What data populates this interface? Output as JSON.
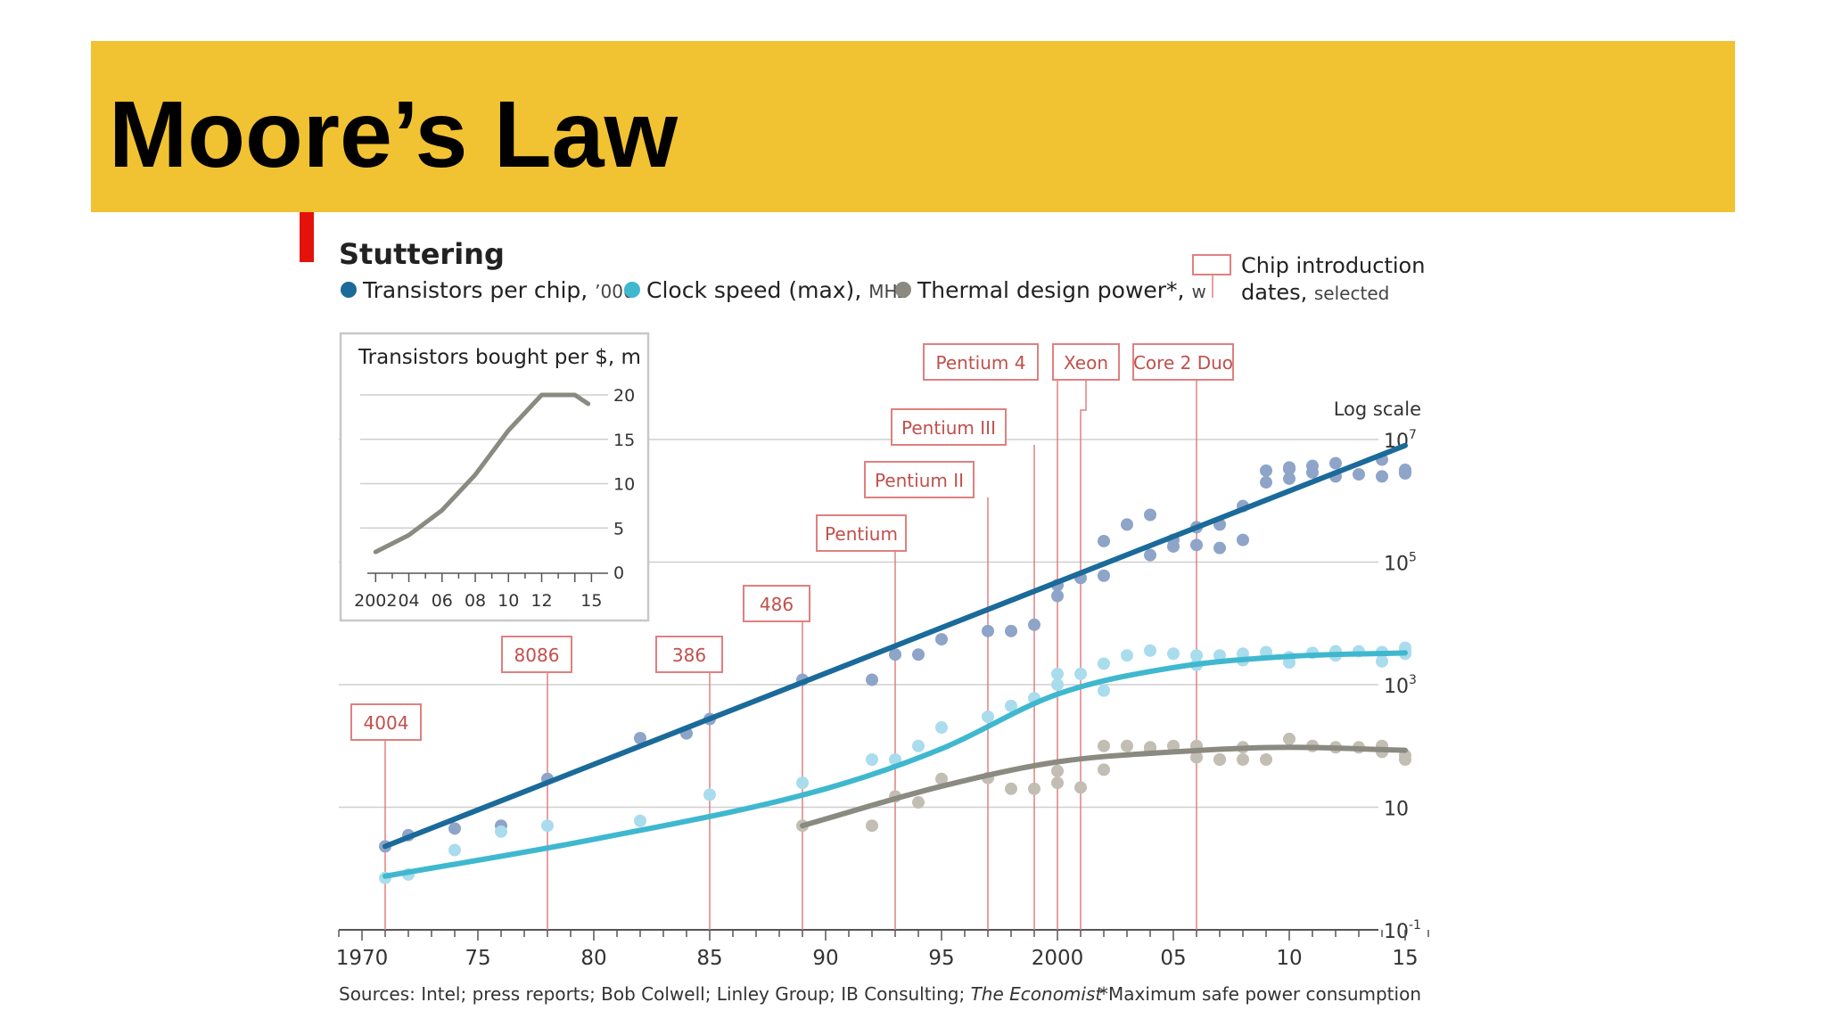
{
  "slide": {
    "title": "Moore’s Law",
    "banner_color": "#f1c232"
  },
  "figure": {
    "heading": "Stuttering",
    "legend": [
      {
        "label": "Transistors per chip,",
        "unit": "’000",
        "color": "#1a6a9a"
      },
      {
        "label": "Clock speed (max),",
        "unit": "MHz",
        "color": "#3fb8cf"
      },
      {
        "label": "Thermal design power*,",
        "unit": "w",
        "color": "#8a8a80"
      }
    ],
    "chip_legend": {
      "line1": "Chip introduction",
      "line2_bold": "dates,",
      "line2_light": "selected",
      "color": "#e08080"
    },
    "scale_note": "Log scale",
    "source_note": "Sources: Intel; press reports; Bob Colwell; Linley Group; IB Consulting;",
    "source_italic": "The Economist",
    "footnote": "*Maximum safe power consumption",
    "accent_color": "#e3120b"
  },
  "chart_data": [
    {
      "type": "scatter",
      "x_label": "",
      "xlim": [
        1969,
        2016
      ],
      "y_scale": "log10",
      "ylim": [
        0.1,
        10000000
      ],
      "y_ticks": [
        {
          "value": 0.1,
          "base": "10",
          "exp": "-1"
        },
        {
          "value": 10,
          "base": "10",
          "exp": ""
        },
        {
          "value": 1000,
          "base": "10",
          "exp": "3"
        },
        {
          "value": 100000,
          "base": "10",
          "exp": "5"
        },
        {
          "value": 10000000,
          "base": "10",
          "exp": "7"
        }
      ],
      "x_ticks": [
        {
          "value": 1970,
          "label": "1970"
        },
        {
          "value": 1975,
          "label": "75"
        },
        {
          "value": 1980,
          "label": "80"
        },
        {
          "value": 1985,
          "label": "85"
        },
        {
          "value": 1990,
          "label": "90"
        },
        {
          "value": 1995,
          "label": "95"
        },
        {
          "value": 2000,
          "label": "2000"
        },
        {
          "value": 2005,
          "label": "05"
        },
        {
          "value": 2010,
          "label": "10"
        },
        {
          "value": 2015,
          "label": "15"
        }
      ],
      "grid": true,
      "chip_markers": [
        {
          "label": "4004",
          "year": 1971
        },
        {
          "label": "8086",
          "year": 1978
        },
        {
          "label": "386",
          "year": 1985
        },
        {
          "label": "486",
          "year": 1989
        },
        {
          "label": "Pentium",
          "year": 1993
        },
        {
          "label": "Pentium II",
          "year": 1997
        },
        {
          "label": "Pentium III",
          "year": 1999
        },
        {
          "label": "Pentium 4",
          "year": 2000
        },
        {
          "label": "Xeon",
          "year": 2001
        },
        {
          "label": "Core 2 Duo",
          "year": 2006
        }
      ],
      "series": [
        {
          "name": "Transistors per chip",
          "color": "#1a6a9a",
          "dot_color": "#8ea4c8",
          "trend": [
            [
              1971,
              2.3
            ],
            [
              2015,
              8000000
            ]
          ],
          "points": [
            [
              1971,
              2.3
            ],
            [
              1972,
              3.5
            ],
            [
              1974,
              4.5
            ],
            [
              1976,
              5
            ],
            [
              1978,
              29
            ],
            [
              1982,
              134
            ],
            [
              1984,
              160
            ],
            [
              1985,
              275
            ],
            [
              1989,
              1200
            ],
            [
              1992,
              1200
            ],
            [
              1993,
              3100
            ],
            [
              1994,
              3100
            ],
            [
              1995,
              5500
            ],
            [
              1997,
              7500
            ],
            [
              1998,
              7500
            ],
            [
              1999,
              9500
            ],
            [
              2000,
              42000
            ],
            [
              2000,
              28000
            ],
            [
              2001,
              55000
            ],
            [
              2002,
              60000
            ],
            [
              2002,
              220000
            ],
            [
              2003,
              410000
            ],
            [
              2004,
              590000
            ],
            [
              2004,
              130000
            ],
            [
              2005,
              230000
            ],
            [
              2005,
              180000
            ],
            [
              2006,
              370000
            ],
            [
              2006,
              190000
            ],
            [
              2007,
              170000
            ],
            [
              2007,
              410000
            ],
            [
              2008,
              230000
            ],
            [
              2008,
              820000
            ],
            [
              2009,
              2000000
            ],
            [
              2009,
              3100000
            ],
            [
              2010,
              3300000
            ],
            [
              2010,
              2300000
            ],
            [
              2010,
              3500000
            ],
            [
              2011,
              3700000
            ],
            [
              2011,
              2900000
            ],
            [
              2012,
              2500000
            ],
            [
              2012,
              4100000
            ],
            [
              2013,
              2700000
            ],
            [
              2014,
              4700000
            ],
            [
              2014,
              2500000
            ],
            [
              2015,
              3000000
            ],
            [
              2015,
              2800000
            ],
            [
              2015,
              3200000
            ]
          ]
        },
        {
          "name": "Clock speed (max)",
          "color": "#3fb8cf",
          "dot_color": "#a9dcec",
          "trend": [
            [
              1971,
              0.75
            ],
            [
              1980,
              3
            ],
            [
              1990,
              20
            ],
            [
              1995,
              90
            ],
            [
              2000,
              700
            ],
            [
              2005,
              1900
            ],
            [
              2010,
              2900
            ],
            [
              2015,
              3300
            ]
          ],
          "points": [
            [
              1971,
              0.7
            ],
            [
              1972,
              0.8
            ],
            [
              1974,
              2
            ],
            [
              1976,
              4
            ],
            [
              1978,
              5
            ],
            [
              1982,
              6
            ],
            [
              1985,
              16
            ],
            [
              1989,
              25
            ],
            [
              1992,
              60
            ],
            [
              1993,
              60
            ],
            [
              1994,
              100
            ],
            [
              1995,
              200
            ],
            [
              1997,
              300
            ],
            [
              1998,
              450
            ],
            [
              1999,
              600
            ],
            [
              2000,
              1500
            ],
            [
              2000,
              1000
            ],
            [
              2001,
              1500
            ],
            [
              2002,
              2200
            ],
            [
              2002,
              800
            ],
            [
              2003,
              3000
            ],
            [
              2004,
              3600
            ],
            [
              2005,
              3200
            ],
            [
              2006,
              3000
            ],
            [
              2006,
              2100
            ],
            [
              2007,
              3000
            ],
            [
              2008,
              2500
            ],
            [
              2008,
              3200
            ],
            [
              2009,
              3400
            ],
            [
              2010,
              2800
            ],
            [
              2010,
              2300
            ],
            [
              2011,
              3300
            ],
            [
              2012,
              3000
            ],
            [
              2012,
              3500
            ],
            [
              2013,
              3500
            ],
            [
              2014,
              3400
            ],
            [
              2014,
              2400
            ],
            [
              2015,
              4000
            ],
            [
              2015,
              3500
            ],
            [
              2015,
              3200
            ]
          ]
        },
        {
          "name": "Thermal design power",
          "color": "#8a8a80",
          "dot_color": "#c2beb4",
          "trend": [
            [
              1989,
              5
            ],
            [
              1995,
              22
            ],
            [
              2000,
              55
            ],
            [
              2005,
              80
            ],
            [
              2010,
              95
            ],
            [
              2015,
              85
            ]
          ],
          "points": [
            [
              1989,
              5
            ],
            [
              1992,
              5
            ],
            [
              1993,
              15
            ],
            [
              1994,
              12
            ],
            [
              1995,
              29
            ],
            [
              1997,
              30
            ],
            [
              1998,
              20
            ],
            [
              1999,
              20
            ],
            [
              2000,
              25
            ],
            [
              2000,
              39
            ],
            [
              2001,
              21
            ],
            [
              2002,
              41
            ],
            [
              2002,
              100
            ],
            [
              2003,
              100
            ],
            [
              2004,
              95
            ],
            [
              2004,
              90
            ],
            [
              2005,
              100
            ],
            [
              2006,
              65
            ],
            [
              2006,
              100
            ],
            [
              2007,
              60
            ],
            [
              2007,
              60
            ],
            [
              2008,
              95
            ],
            [
              2008,
              60
            ],
            [
              2009,
              60
            ],
            [
              2010,
              130
            ],
            [
              2011,
              100
            ],
            [
              2012,
              95
            ],
            [
              2013,
              95
            ],
            [
              2014,
              100
            ],
            [
              2014,
              80
            ],
            [
              2015,
              70
            ],
            [
              2015,
              60
            ]
          ]
        }
      ]
    },
    {
      "type": "line",
      "title": "Transistors bought per $, m",
      "xlim": [
        2001.5,
        2016
      ],
      "ylim": [
        0,
        20
      ],
      "y_ticks": [
        0,
        5,
        10,
        15,
        20
      ],
      "x_ticks": [
        {
          "value": 2002,
          "label": "2002"
        },
        {
          "value": 2004,
          "label": "04"
        },
        {
          "value": 2006,
          "label": "06"
        },
        {
          "value": 2008,
          "label": "08"
        },
        {
          "value": 2010,
          "label": "10"
        },
        {
          "value": 2012,
          "label": "12"
        },
        {
          "value": 2015,
          "label": "15"
        }
      ],
      "color": "#8a8a80",
      "series": [
        {
          "values": [
            [
              2002,
              2.3
            ],
            [
              2004,
              4.2
            ],
            [
              2006,
              7
            ],
            [
              2008,
              11
            ],
            [
              2010,
              16
            ],
            [
              2012,
              20
            ],
            [
              2014,
              20
            ],
            [
              2014.8,
              19
            ]
          ]
        }
      ]
    }
  ]
}
